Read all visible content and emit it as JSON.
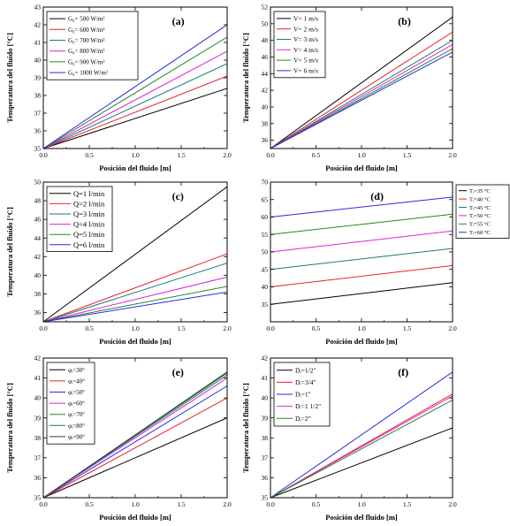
{
  "figure": {
    "xlabel": "Posición del fluido [m]",
    "ylabel": "Temperatura del fluido [°C]"
  },
  "chart_data": [
    {
      "panel": "(a)",
      "type": "line",
      "xlabel": "Posición del fluido [m]",
      "ylabel": "Temperatura del fluido [°C]",
      "xlim": [
        0.0,
        2.0
      ],
      "ylim": [
        35,
        43
      ],
      "x_ticks": [
        "0.0",
        "0.5",
        "1.0",
        "1.5",
        "2.0"
      ],
      "y_ticks": [
        "35",
        "36",
        "37",
        "38",
        "39",
        "40",
        "41",
        "42",
        "43"
      ],
      "legend_position": "top-left",
      "series": [
        {
          "name": "G₀= 500 W/m²",
          "color": "#000000",
          "x": [
            0,
            2
          ],
          "y": [
            35.0,
            38.4
          ]
        },
        {
          "name": "G₀= 600 W/m²",
          "color": "#e8202a",
          "x": [
            0,
            2
          ],
          "y": [
            35.0,
            39.1
          ]
        },
        {
          "name": "G₀= 700 W/m²",
          "color": "#1a7a78",
          "x": [
            0,
            2
          ],
          "y": [
            35.0,
            39.8
          ]
        },
        {
          "name": "G₀= 800 W/m²",
          "color": "#e020d8",
          "x": [
            0,
            2
          ],
          "y": [
            35.0,
            40.5
          ]
        },
        {
          "name": "G₀= 900 W/m²",
          "color": "#1f8a1f",
          "x": [
            0,
            2
          ],
          "y": [
            35.0,
            41.3
          ]
        },
        {
          "name": "G₀= 1000 W/m²",
          "color": "#2a2ae0",
          "x": [
            0,
            2
          ],
          "y": [
            35.0,
            42.0
          ]
        }
      ]
    },
    {
      "panel": "(b)",
      "type": "line",
      "xlabel": "Posición del fluido [m]",
      "ylabel": "Temperatura del fluido [°C]",
      "xlim": [
        0.0,
        2.0
      ],
      "ylim": [
        35,
        52
      ],
      "x_ticks": [
        "0.0",
        "0.5",
        "1.0",
        "1.5",
        "2.0"
      ],
      "y_ticks": [
        "36",
        "38",
        "40",
        "42",
        "44",
        "46",
        "48",
        "50",
        "52"
      ],
      "legend_position": "top-left",
      "series": [
        {
          "name": "V= 1 m/s",
          "color": "#000000",
          "x": [
            0,
            2
          ],
          "y": [
            35.0,
            50.8
          ]
        },
        {
          "name": "V= 2 m/s",
          "color": "#e8202a",
          "x": [
            0,
            2
          ],
          "y": [
            35.0,
            49.0
          ]
        },
        {
          "name": "V= 3 m/s",
          "color": "#1a7a78",
          "x": [
            0,
            2
          ],
          "y": [
            35.0,
            48.0
          ]
        },
        {
          "name": "V= 4 m/s",
          "color": "#e020d8",
          "x": [
            0,
            2
          ],
          "y": [
            35.0,
            47.5
          ]
        },
        {
          "name": "V= 5 m/s",
          "color": "#1f8a1f",
          "x": [
            0,
            2
          ],
          "y": [
            35.0,
            47.0
          ]
        },
        {
          "name": "V= 6 m/s",
          "color": "#2a2ae0",
          "x": [
            0,
            2
          ],
          "y": [
            35.0,
            46.6
          ]
        }
      ]
    },
    {
      "panel": "(c)",
      "type": "line",
      "xlabel": "Posición del fluido [m]",
      "ylabel": "Temperatura del fluido [°C]",
      "xlim": [
        0.0,
        2.0
      ],
      "ylim": [
        35,
        50
      ],
      "x_ticks": [
        "0.0",
        "0.5",
        "1.0",
        "1.5",
        "2.0"
      ],
      "y_ticks": [
        "36",
        "38",
        "40",
        "42",
        "44",
        "46",
        "48",
        "50"
      ],
      "legend_position": "top-left",
      "series": [
        {
          "name": "Q=1 l/min",
          "color": "#000000",
          "x": [
            0,
            2
          ],
          "y": [
            35.0,
            49.5
          ]
        },
        {
          "name": "Q=2 l/min",
          "color": "#e8202a",
          "x": [
            0,
            2
          ],
          "y": [
            35.0,
            42.3
          ]
        },
        {
          "name": "Q=3 l/min",
          "color": "#1a7a78",
          "x": [
            0,
            2
          ],
          "y": [
            35.0,
            41.3
          ]
        },
        {
          "name": "Q=4 l/min",
          "color": "#e020d8",
          "x": [
            0,
            2
          ],
          "y": [
            35.0,
            39.8
          ]
        },
        {
          "name": "Q=5 l/min",
          "color": "#1f8a1f",
          "x": [
            0,
            2
          ],
          "y": [
            35.0,
            38.8
          ]
        },
        {
          "name": "Q=6 l/min",
          "color": "#2a2ae0",
          "x": [
            0,
            2
          ],
          "y": [
            35.0,
            38.2
          ]
        }
      ]
    },
    {
      "panel": "(d)",
      "type": "line",
      "xlabel": "Posición del fluido [m]",
      "ylabel": "",
      "xlim": [
        0.0,
        2.0
      ],
      "ylim": [
        30,
        70
      ],
      "x_ticks": [
        "0.0",
        "0.5",
        "1.0",
        "1.5",
        "2.0"
      ],
      "y_ticks": [
        "35",
        "40",
        "45",
        "50",
        "55",
        "60",
        "65",
        "70"
      ],
      "legend_position": "outside-right",
      "series": [
        {
          "name": "Tᵢ=35 °C",
          "color": "#000000",
          "x": [
            0,
            2
          ],
          "y": [
            35.0,
            41.2
          ]
        },
        {
          "name": "Tᵢ=40 °C",
          "color": "#e8202a",
          "x": [
            0,
            2
          ],
          "y": [
            40.0,
            46.1
          ]
        },
        {
          "name": "Tᵢ=45 °C",
          "color": "#1a7a78",
          "x": [
            0,
            2
          ],
          "y": [
            45.0,
            51.0
          ]
        },
        {
          "name": "Tᵢ=50 °C",
          "color": "#e020d8",
          "x": [
            0,
            2
          ],
          "y": [
            50.0,
            56.0
          ]
        },
        {
          "name": "Tᵢ=55 °C",
          "color": "#1f8a1f",
          "x": [
            0,
            2
          ],
          "y": [
            55.0,
            60.8
          ]
        },
        {
          "name": "Tᵢ=60 °C",
          "color": "#2a2ae0",
          "x": [
            0,
            2
          ],
          "y": [
            60.0,
            65.7
          ]
        }
      ]
    },
    {
      "panel": "(e)",
      "type": "line",
      "xlabel": "Posición del fluido [m]",
      "ylabel": "Temperatura del fluido [°C]",
      "xlim": [
        0.0,
        2.0
      ],
      "ylim": [
        35,
        42
      ],
      "x_ticks": [
        "0.0",
        "0.5",
        "1.0",
        "1.5",
        "2.0"
      ],
      "y_ticks": [
        "35",
        "36",
        "37",
        "38",
        "39",
        "40",
        "41",
        "42"
      ],
      "legend_position": "top-left",
      "series": [
        {
          "name": "φᵢ=30°",
          "color": "#000000",
          "x": [
            0,
            2
          ],
          "y": [
            35.0,
            39.0
          ]
        },
        {
          "name": "φᵢ=40°",
          "color": "#e8202a",
          "x": [
            0,
            2
          ],
          "y": [
            35.0,
            40.0
          ]
        },
        {
          "name": "φᵢ=50°",
          "color": "#2a2ae0",
          "x": [
            0,
            2
          ],
          "y": [
            35.0,
            40.6
          ]
        },
        {
          "name": "φᵢ=60°",
          "color": "#e020d8",
          "x": [
            0,
            2
          ],
          "y": [
            35.0,
            41.0
          ]
        },
        {
          "name": "φᵢ=70°",
          "color": "#1f8a1f",
          "x": [
            0,
            2
          ],
          "y": [
            35.0,
            41.25
          ]
        },
        {
          "name": "φᵢ=80°",
          "color": "#1a7a78",
          "x": [
            0,
            2
          ],
          "y": [
            35.0,
            41.15
          ]
        },
        {
          "name": "φᵢ=90°",
          "color": "#3a3a3a",
          "x": [
            0,
            2
          ],
          "y": [
            35.0,
            41.3
          ]
        }
      ]
    },
    {
      "panel": "(f)",
      "type": "line",
      "xlabel": "Posición del fluido [m]",
      "ylabel": "Temperatura del fluido [°C]",
      "xlim": [
        0.0,
        2.0
      ],
      "ylim": [
        35,
        42
      ],
      "x_ticks": [
        "0.0",
        "0.5",
        "1.0",
        "1.5",
        "2.0"
      ],
      "y_ticks": [
        "35",
        "36",
        "37",
        "38",
        "39",
        "40",
        "41",
        "42"
      ],
      "legend_position": "top-left",
      "series": [
        {
          "name": "Dᵢ=1/2\"",
          "color": "#000000",
          "x": [
            0,
            2
          ],
          "y": [
            35.0,
            38.5
          ]
        },
        {
          "name": "Dᵢ=3/4\"",
          "color": "#e8202a",
          "x": [
            0,
            2
          ],
          "y": [
            35.0,
            40.2
          ]
        },
        {
          "name": "Dᵢ=1\"",
          "color": "#2a2ae0",
          "x": [
            0,
            2
          ],
          "y": [
            35.0,
            41.3
          ]
        },
        {
          "name": "Dᵢ=1 1/2\"",
          "color": "#e020d8",
          "x": [
            0,
            2
          ],
          "y": [
            35.0,
            40.1
          ]
        },
        {
          "name": "Dᵢ=2\"",
          "color": "#1f8a1f",
          "x": [
            0,
            2
          ],
          "y": [
            35.0,
            39.9
          ]
        }
      ]
    }
  ]
}
